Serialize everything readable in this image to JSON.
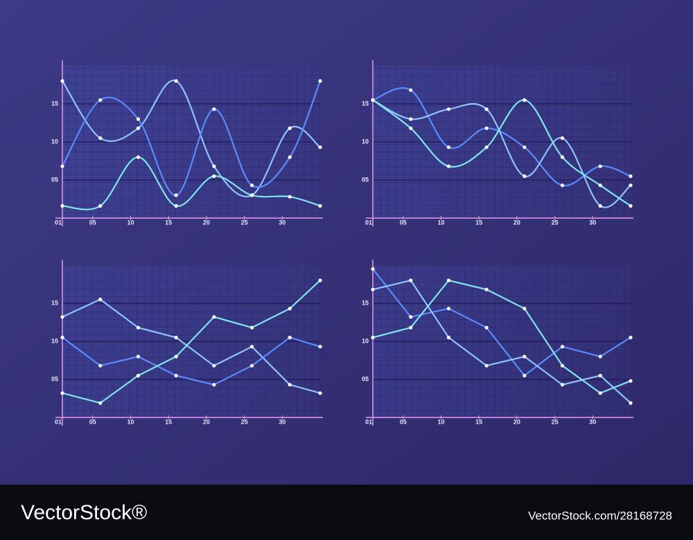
{
  "chart_data": [
    {
      "type": "line",
      "smooth": true,
      "x": [
        1,
        6,
        11,
        16,
        21,
        26,
        31,
        35
      ],
      "xlim": [
        1,
        35
      ],
      "ylim": [
        0,
        20
      ],
      "xticks": [
        {
          "value": 1,
          "label": "01"
        },
        {
          "value": 5,
          "label": "05"
        },
        10,
        15,
        20,
        25,
        30
      ],
      "yticks": [
        {
          "value": 5,
          "label": "05"
        },
        10,
        15
      ],
      "grid": true,
      "series": [
        {
          "color": "#8fc4ff",
          "values": [
            18,
            10.5,
            11.8,
            18,
            6.8,
            3,
            11.8,
            9.3
          ]
        },
        {
          "color": "#5b8cff",
          "values": [
            6.8,
            15.5,
            13,
            3,
            14.3,
            4.3,
            8,
            18
          ]
        },
        {
          "color": "#7fe6ee",
          "values": [
            1.6,
            1.6,
            8,
            1.6,
            5.5,
            3,
            2.8,
            1.6
          ]
        }
      ]
    },
    {
      "type": "line",
      "smooth": true,
      "x": [
        1,
        6,
        11,
        16,
        21,
        26,
        31,
        35
      ],
      "xlim": [
        1,
        35
      ],
      "ylim": [
        0,
        20
      ],
      "xticks": [
        {
          "value": 1,
          "label": "01"
        },
        {
          "value": 5,
          "label": "05"
        },
        10,
        15,
        20,
        25,
        30
      ],
      "yticks": [
        {
          "value": 5,
          "label": "05"
        },
        10,
        15
      ],
      "grid": true,
      "series": [
        {
          "color": "#5b8cff",
          "values": [
            15.5,
            16.8,
            9.3,
            11.8,
            9.3,
            4.3,
            6.8,
            5.5
          ]
        },
        {
          "color": "#8fc4ff",
          "values": [
            15.5,
            13,
            14.3,
            14.3,
            5.5,
            10.5,
            1.6,
            4.3
          ]
        },
        {
          "color": "#7fe6ee",
          "values": [
            15.5,
            11.8,
            6.8,
            9.3,
            15.5,
            8,
            4.3,
            1.6
          ]
        }
      ]
    },
    {
      "type": "line",
      "smooth": false,
      "x": [
        1,
        6,
        11,
        16,
        21,
        26,
        31,
        35
      ],
      "xlim": [
        1,
        35
      ],
      "ylim": [
        0,
        20
      ],
      "xticks": [
        {
          "value": 1,
          "label": "01"
        },
        {
          "value": 5,
          "label": "05"
        },
        10,
        15,
        20,
        25,
        30
      ],
      "yticks": [
        {
          "value": 5,
          "label": "05"
        },
        10,
        15
      ],
      "grid": true,
      "series": [
        {
          "color": "#8fc4ff",
          "values": [
            13.2,
            15.5,
            11.8,
            10.5,
            6.8,
            9.3,
            4.3,
            3.2
          ]
        },
        {
          "color": "#5b8cff",
          "values": [
            10.5,
            6.8,
            8,
            5.5,
            4.3,
            6.8,
            10.5,
            9.3
          ]
        },
        {
          "color": "#7fe6ee",
          "values": [
            3.2,
            1.9,
            5.5,
            8,
            13.2,
            11.8,
            14.3,
            18
          ]
        }
      ]
    },
    {
      "type": "line",
      "smooth": false,
      "x": [
        1,
        6,
        11,
        16,
        21,
        26,
        31,
        35
      ],
      "xlim": [
        1,
        35
      ],
      "ylim": [
        0,
        20
      ],
      "xticks": [
        {
          "value": 1,
          "label": "01"
        },
        {
          "value": 5,
          "label": "05"
        },
        10,
        15,
        20,
        25,
        30
      ],
      "yticks": [
        {
          "value": 5,
          "label": "05"
        },
        10,
        15
      ],
      "grid": true,
      "series": [
        {
          "color": "#5b8cff",
          "values": [
            19.5,
            13.2,
            14.3,
            11.8,
            5.5,
            9.3,
            8,
            10.5
          ]
        },
        {
          "color": "#8fc4ff",
          "values": [
            16.8,
            18,
            10.5,
            6.8,
            8,
            4.3,
            5.5,
            1.9
          ]
        },
        {
          "color": "#7fe6ee",
          "values": [
            10.5,
            11.8,
            18,
            16.8,
            14.3,
            6.8,
            3.2,
            4.8
          ]
        }
      ]
    }
  ],
  "footer": {
    "brand": "VectorStock®",
    "url": "VectorStock.com/28168728"
  }
}
